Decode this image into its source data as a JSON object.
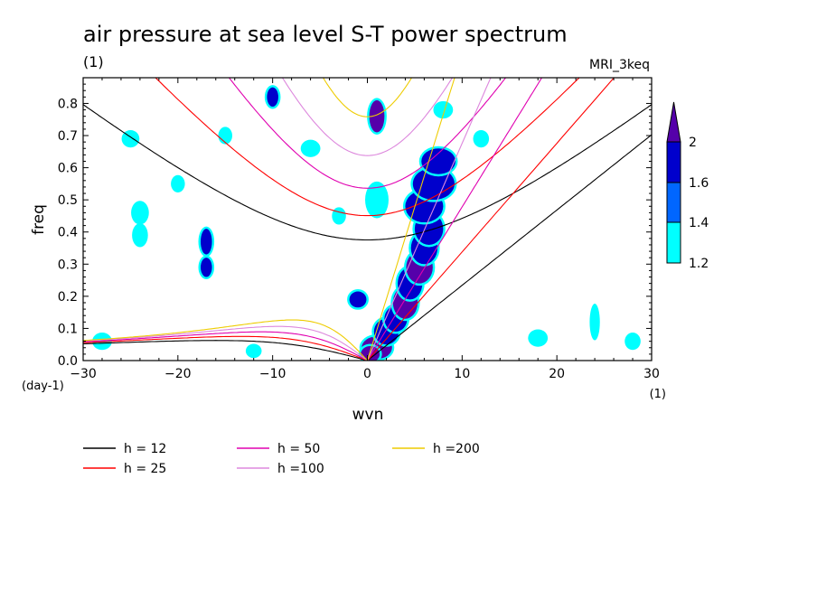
{
  "chart_data": {
    "type": "heatmap",
    "title": "air pressure at sea level S-T power spectrum",
    "subtitle": "(1)",
    "model_label": "MRI_3keq",
    "xlabel": "wvn",
    "ylabel": "freq",
    "x_unit": "(1)",
    "y_unit": "(day-1)",
    "xlim": [
      -30,
      30
    ],
    "ylim": [
      0,
      0.88
    ],
    "x_ticks": [
      -30,
      -20,
      -10,
      0,
      10,
      20,
      30
    ],
    "y_ticks": [
      0.0,
      0.1,
      0.2,
      0.3,
      0.4,
      0.5,
      0.6,
      0.7,
      0.8
    ],
    "y_tick_labels": [
      "0.0",
      "0.1",
      "0.2",
      "0.3",
      "0.4",
      "0.5",
      "0.6",
      "0.7",
      "0.8"
    ],
    "colorbar": {
      "levels": [
        1.2,
        1.4,
        1.6,
        2
      ],
      "labels": [
        "1.2",
        "1.4",
        "1.6",
        "2"
      ],
      "colors": [
        "#00ffff",
        "#0066ff",
        "#0000cc",
        "#5500aa"
      ]
    },
    "dispersion_curves": [
      {
        "name": "h = 12",
        "h": 12,
        "color": "#000000"
      },
      {
        "name": "h = 25",
        "h": 25,
        "color": "#ff0000"
      },
      {
        "name": "h = 50",
        "h": 50,
        "color": "#e000b0"
      },
      {
        "name": "h =100",
        "h": 100,
        "color": "#dd88dd"
      },
      {
        "name": "h =200",
        "h": 200,
        "color": "#eecc00"
      }
    ],
    "spectral_blobs": [
      {
        "x": 1.0,
        "y": 0.04,
        "rx": 1.6,
        "ry": 0.035,
        "level": 2
      },
      {
        "x": 2.0,
        "y": 0.09,
        "rx": 1.3,
        "ry": 0.04,
        "level": 1.6
      },
      {
        "x": 3.0,
        "y": 0.13,
        "rx": 1.2,
        "ry": 0.04,
        "level": 1.6
      },
      {
        "x": 4.0,
        "y": 0.18,
        "rx": 1.3,
        "ry": 0.05,
        "level": 2
      },
      {
        "x": 4.5,
        "y": 0.24,
        "rx": 1.3,
        "ry": 0.05,
        "level": 1.6
      },
      {
        "x": 5.5,
        "y": 0.29,
        "rx": 1.4,
        "ry": 0.05,
        "level": 2
      },
      {
        "x": 6.0,
        "y": 0.35,
        "rx": 1.4,
        "ry": 0.05,
        "level": 1.6
      },
      {
        "x": 6.5,
        "y": 0.41,
        "rx": 1.5,
        "ry": 0.05,
        "level": 1.6
      },
      {
        "x": 6.0,
        "y": 0.48,
        "rx": 2.0,
        "ry": 0.05,
        "level": 1.6
      },
      {
        "x": 7.0,
        "y": 0.55,
        "rx": 2.2,
        "ry": 0.05,
        "level": 1.6
      },
      {
        "x": 7.5,
        "y": 0.62,
        "rx": 1.8,
        "ry": 0.04,
        "level": 1.6
      },
      {
        "x": 0.3,
        "y": 0.02,
        "rx": 1.0,
        "ry": 0.025,
        "level": 2
      },
      {
        "x": 1.0,
        "y": 0.76,
        "rx": 0.8,
        "ry": 0.05,
        "level": 2
      },
      {
        "x": 1.0,
        "y": 0.5,
        "rx": 1.0,
        "ry": 0.05,
        "level": 1.2
      },
      {
        "x": -1.0,
        "y": 0.19,
        "rx": 0.9,
        "ry": 0.025,
        "level": 1.6
      },
      {
        "x": -17.0,
        "y": 0.37,
        "rx": 0.6,
        "ry": 0.04,
        "level": 1.6
      },
      {
        "x": -17.0,
        "y": 0.29,
        "rx": 0.6,
        "ry": 0.03,
        "level": 1.6
      },
      {
        "x": -24.0,
        "y": 0.46,
        "rx": 0.7,
        "ry": 0.03,
        "level": 1.2
      },
      {
        "x": -24.0,
        "y": 0.39,
        "rx": 0.6,
        "ry": 0.03,
        "level": 1.2
      },
      {
        "x": -10.0,
        "y": 0.82,
        "rx": 0.6,
        "ry": 0.03,
        "level": 1.6
      },
      {
        "x": 8.0,
        "y": 0.78,
        "rx": 0.8,
        "ry": 0.02,
        "level": 1.2
      },
      {
        "x": -6.0,
        "y": 0.66,
        "rx": 0.8,
        "ry": 0.02,
        "level": 1.2
      },
      {
        "x": -25.0,
        "y": 0.69,
        "rx": 0.7,
        "ry": 0.02,
        "level": 1.2
      },
      {
        "x": -3.0,
        "y": 0.45,
        "rx": 0.5,
        "ry": 0.02,
        "level": 1.2
      },
      {
        "x": -28.0,
        "y": 0.06,
        "rx": 0.8,
        "ry": 0.02,
        "level": 1.2
      },
      {
        "x": -12.0,
        "y": 0.03,
        "rx": 0.6,
        "ry": 0.015,
        "level": 1.2
      },
      {
        "x": 18.0,
        "y": 0.07,
        "rx": 0.8,
        "ry": 0.02,
        "level": 1.2
      },
      {
        "x": 24.0,
        "y": 0.12,
        "rx": 0.3,
        "ry": 0.05,
        "level": 1.2
      },
      {
        "x": 28.0,
        "y": 0.06,
        "rx": 0.6,
        "ry": 0.02,
        "level": 1.2
      },
      {
        "x": -15.0,
        "y": 0.7,
        "rx": 0.5,
        "ry": 0.02,
        "level": 1.2
      },
      {
        "x": 12.0,
        "y": 0.69,
        "rx": 0.6,
        "ry": 0.02,
        "level": 1.2
      },
      {
        "x": -20.0,
        "y": 0.55,
        "rx": 0.5,
        "ry": 0.02,
        "level": 1.2
      }
    ]
  }
}
